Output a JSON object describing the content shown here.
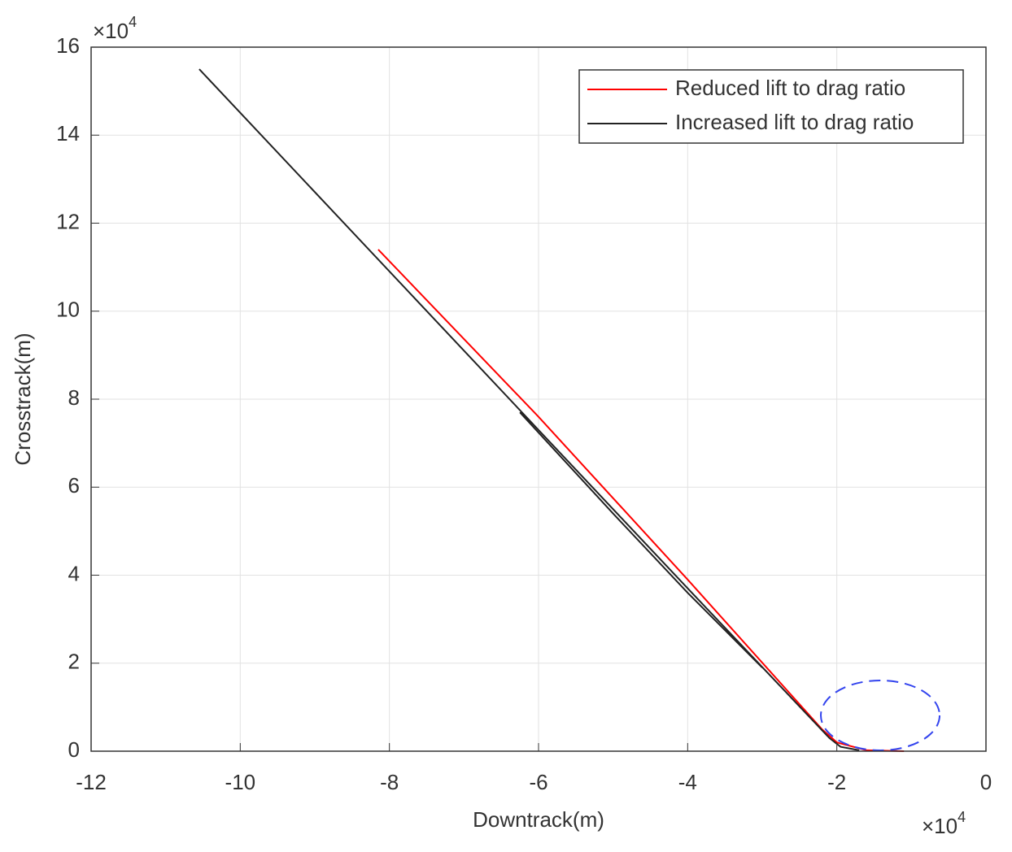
{
  "chart_data": {
    "type": "line",
    "x_label": "Downtrack(m)",
    "y_label": "Crosstrack(m)",
    "x_multiplier": {
      "base": "×10",
      "exponent": "4"
    },
    "y_multiplier": {
      "base": "×10",
      "exponent": "4"
    },
    "xlim": [
      -12,
      0
    ],
    "xticks": [
      -12,
      -10,
      -8,
      -6,
      -4,
      -2,
      0
    ],
    "ylim": [
      0,
      16
    ],
    "yticks": [
      0,
      2,
      4,
      6,
      8,
      10,
      12,
      14,
      16
    ],
    "grid": true,
    "legend": "upper right",
    "series": [
      {
        "name": "Reduced lift to drag ratio",
        "color": "#ff0000",
        "x": [
          -8.15,
          -6.0,
          -4.0,
          -2.2,
          -2.0,
          -1.6,
          -1.1
        ],
        "values": [
          11.4,
          7.6,
          3.9,
          0.5,
          0.2,
          0.02,
          0
        ]
      },
      {
        "name": "Increased lift to drag ratio",
        "color": "#222222",
        "x": [
          -10.55,
          -6.0,
          -4.0,
          -2.1,
          -1.95,
          -1.7,
          null,
          -6.25,
          -5.0,
          -4.0,
          -3.0
        ],
        "values": [
          15.5,
          7.3,
          3.7,
          0.3,
          0.1,
          0.02,
          null,
          7.7,
          5.4,
          3.6,
          1.9
        ]
      }
    ]
  }
}
